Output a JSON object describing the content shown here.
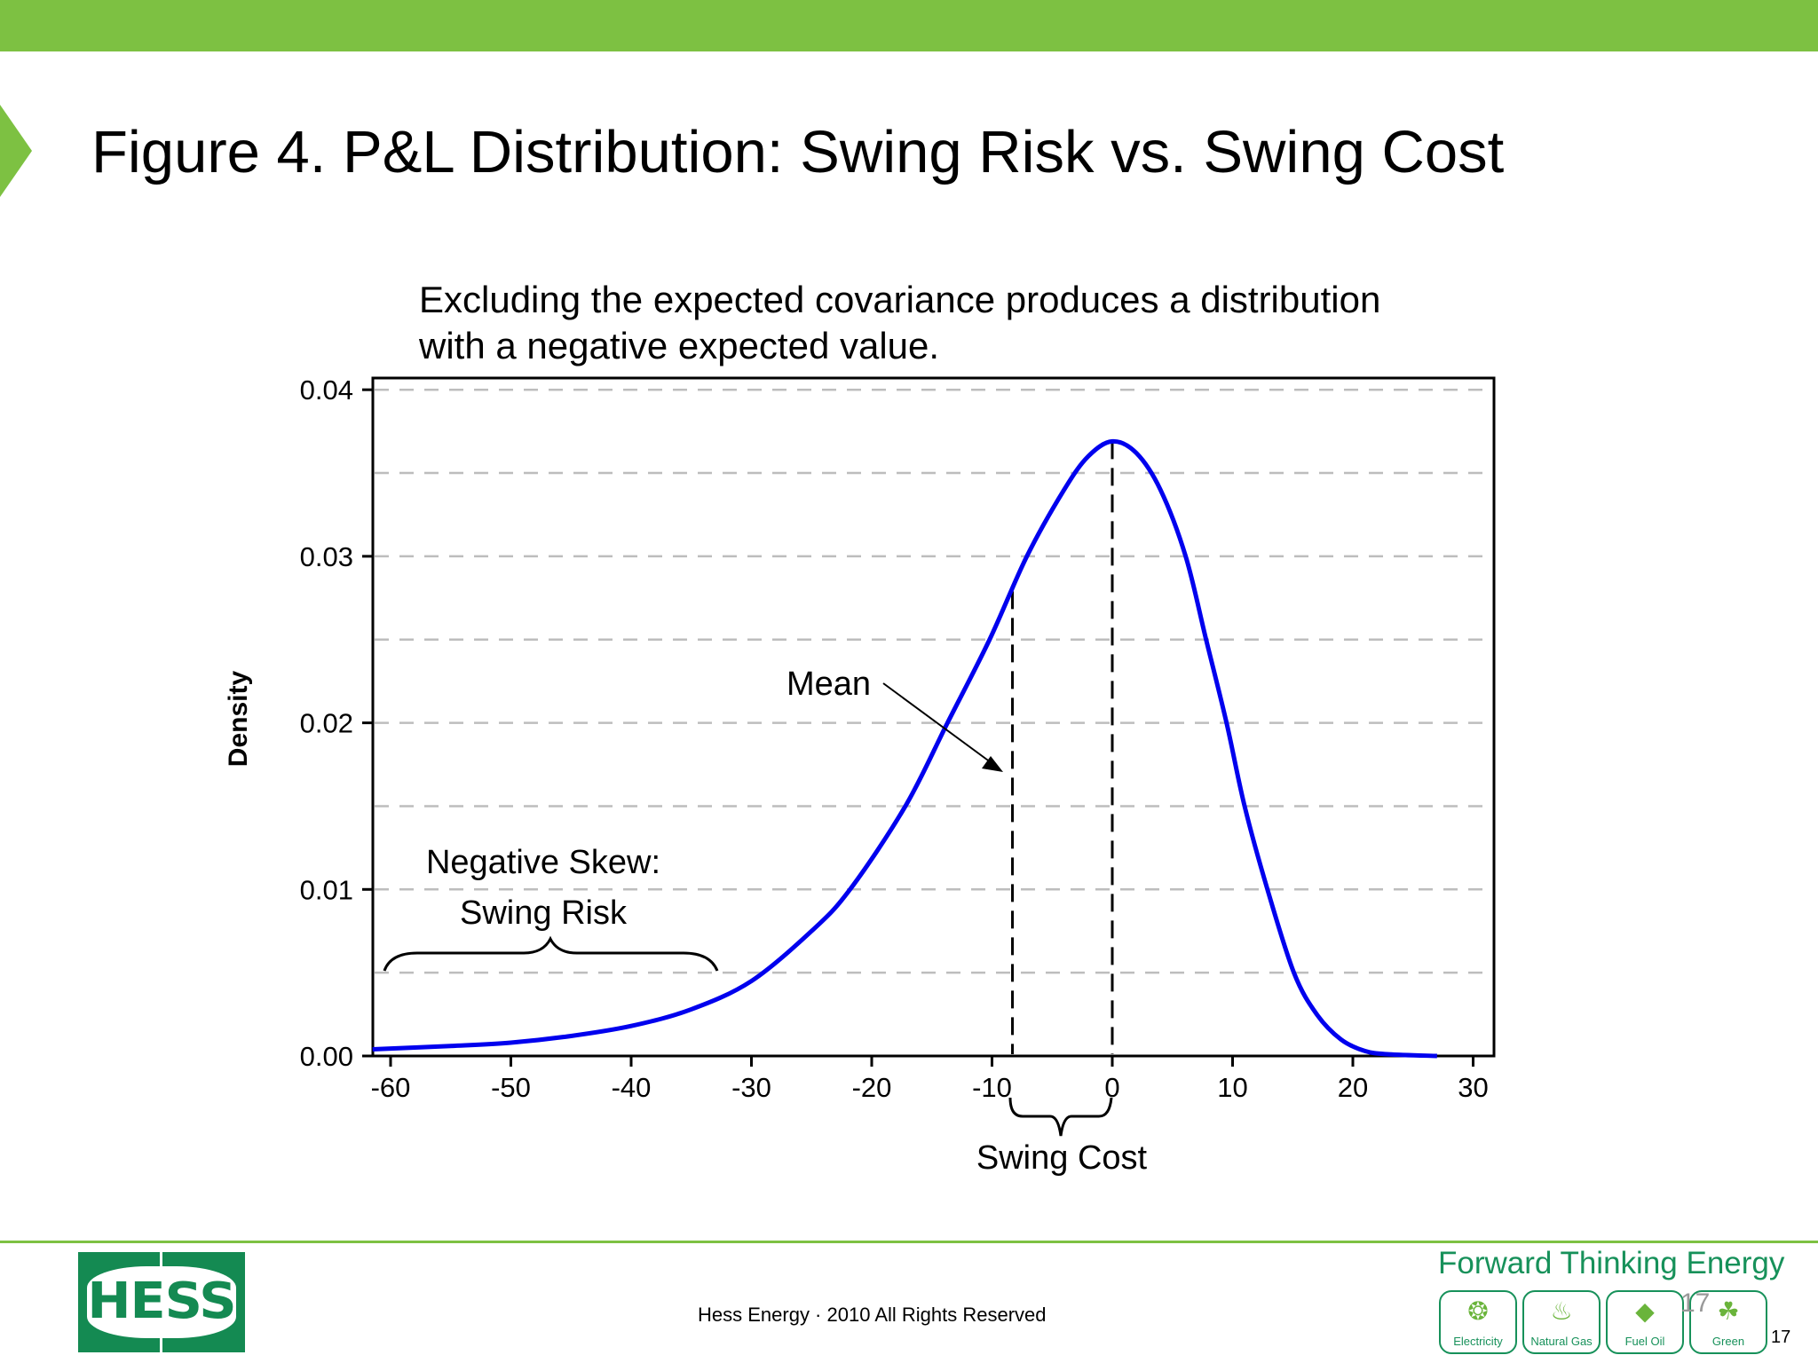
{
  "slide": {
    "title": "Figure 4. P&L Distribution: Swing Risk vs. Swing Cost",
    "subtitle_line1": "Excluding the expected covariance produces a distribution",
    "subtitle_line2": "with a negative expected value.",
    "accent_color": "#7dc142"
  },
  "footer": {
    "logo_text": "HESS",
    "copyright": "Hess Energy · 2010 All Rights Reserved",
    "tagline": "Forward Thinking Energy",
    "badges": [
      {
        "label": "Electricity",
        "icon": "lightbulb-icon",
        "glyph": "❂"
      },
      {
        "label": "Natural Gas",
        "icon": "flame-icon",
        "glyph": "♨"
      },
      {
        "label": "Fuel Oil",
        "icon": "droplet-icon",
        "glyph": "◆"
      },
      {
        "label": "Green",
        "icon": "leaf-icon",
        "glyph": "☘"
      }
    ],
    "ghost_page_number": "17",
    "page_number": "17",
    "brand_color": "#148a52"
  },
  "chart_data": {
    "type": "line",
    "title": "Excluding the expected covariance produces a distribution with a negative expected value.",
    "xlabel": "",
    "ylabel": "Density",
    "xlim": [
      -62,
      32
    ],
    "ylim": [
      0,
      0.04
    ],
    "x_ticks": [
      -60,
      -50,
      -40,
      -30,
      -20,
      -10,
      0,
      10,
      20,
      30
    ],
    "x_tick_labels": [
      "-60",
      "-50",
      "-40",
      "-30",
      "-20",
      "-10",
      "0",
      "10",
      "20",
      "30"
    ],
    "y_ticks": [
      0,
      0.01,
      0.02,
      0.03,
      0.04
    ],
    "y_tick_labels": [
      "0.00",
      "0.01",
      "0.02",
      "0.03",
      "0.04"
    ],
    "grid": {
      "horizontal": true,
      "style": "dashed",
      "step": 0.005
    },
    "line_color": "#0000ee",
    "series": [
      {
        "name": "P&L density",
        "x": [
          -61.5,
          -55,
          -50,
          -45,
          -40,
          -35,
          -30,
          -25,
          -21.8,
          -17.2,
          -13.7,
          -10.2,
          -7.1,
          -4,
          -2,
          0,
          2,
          4,
          6.1,
          7.8,
          9.5,
          11,
          12.9,
          15.1,
          17,
          19,
          21,
          23,
          27
        ],
        "y": [
          0.0004,
          0.0006,
          0.0008,
          0.0012,
          0.0018,
          0.0028,
          0.0045,
          0.0075,
          0.01,
          0.015,
          0.02,
          0.025,
          0.03,
          0.034,
          0.036,
          0.0369,
          0.0362,
          0.034,
          0.03,
          0.025,
          0.02,
          0.015,
          0.01,
          0.005,
          0.0025,
          0.001,
          0.0003,
          0.0001,
          0.0
        ]
      }
    ],
    "vertical_lines": [
      {
        "name": "mean",
        "x": -8.3,
        "y_top": 0.0279,
        "style": "dashed"
      },
      {
        "name": "zero",
        "x": 0,
        "y_top": 0.0369,
        "style": "dashed"
      }
    ],
    "annotations": [
      {
        "text": "Mean",
        "arrow_to": {
          "x": -8.8,
          "y": 0.0172
        }
      },
      {
        "text_line1": "Negative Skew:",
        "text_line2": "Swing Risk",
        "brace_x_range": [
          -61,
          -33
        ]
      },
      {
        "text": "Swing Cost",
        "brace_x_range": [
          -8.3,
          0
        ]
      }
    ]
  }
}
